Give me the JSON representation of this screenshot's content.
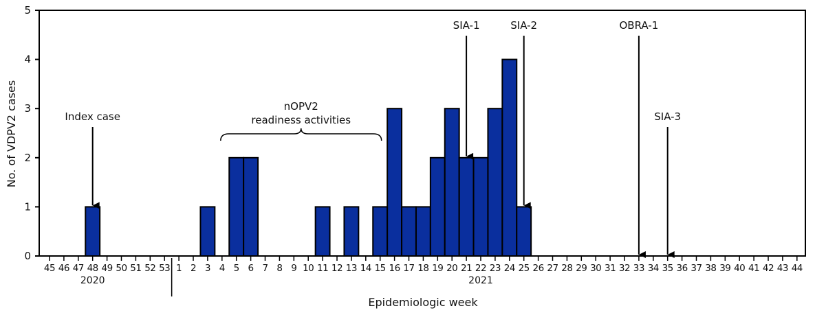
{
  "chart_data": {
    "type": "bar",
    "ylabel": "No. of VDPV2 cases",
    "xlabel": "Epidemiologic week",
    "ylim": [
      0,
      5
    ],
    "yticks": [
      "0",
      "1",
      "2",
      "3",
      "4",
      "5"
    ],
    "categories": [
      "45",
      "46",
      "47",
      "48",
      "49",
      "50",
      "51",
      "52",
      "53",
      "1",
      "2",
      "3",
      "4",
      "5",
      "6",
      "7",
      "8",
      "9",
      "10",
      "11",
      "12",
      "13",
      "14",
      "15",
      "16",
      "17",
      "18",
      "19",
      "20",
      "21",
      "22",
      "23",
      "24",
      "25",
      "26",
      "27",
      "28",
      "29",
      "30",
      "31",
      "32",
      "33",
      "34",
      "35",
      "36",
      "37",
      "38",
      "39",
      "40",
      "41",
      "42",
      "43",
      "44"
    ],
    "values": [
      0,
      0,
      0,
      1,
      0,
      0,
      0,
      0,
      0,
      0,
      0,
      1,
      0,
      2,
      2,
      0,
      0,
      0,
      0,
      1,
      0,
      1,
      0,
      1,
      3,
      1,
      1,
      2,
      3,
      2,
      2,
      3,
      4,
      1,
      0,
      0,
      0,
      0,
      0,
      0,
      0,
      0,
      0,
      0,
      0,
      0,
      0,
      0,
      0,
      0,
      0,
      0,
      0
    ],
    "years": [
      {
        "label": "2020",
        "from": "45",
        "to": "53"
      },
      {
        "label": "2021",
        "from": "1",
        "to": "44"
      }
    ],
    "bar_color": "#0a2f9e",
    "annotations": [
      {
        "type": "arrow",
        "label": "Index case",
        "week": "48",
        "target_value": 1
      },
      {
        "type": "brace",
        "label_line1": "nOPV2",
        "label_line2": "readiness activities",
        "from": "4",
        "to": "15"
      },
      {
        "type": "arrow",
        "label": "SIA-1",
        "week": "21",
        "target_value": 2
      },
      {
        "type": "arrow",
        "label": "SIA-2",
        "week": "25",
        "target_value": 1
      },
      {
        "type": "arrow",
        "label": "OBRA-1",
        "week": "33",
        "target_value": 0
      },
      {
        "type": "arrow",
        "label": "SIA-3",
        "week": "35",
        "target_value": 0
      }
    ],
    "grid": false
  }
}
